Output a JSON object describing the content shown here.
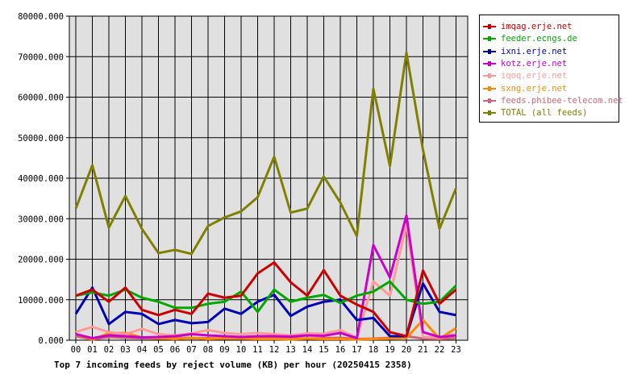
{
  "chart_data": {
    "type": "line",
    "title": "Top 7 incoming feeds by reject volume (KB) per hour (20250415 2358)",
    "categories": [
      "00",
      "01",
      "02",
      "03",
      "04",
      "05",
      "06",
      "07",
      "08",
      "09",
      "10",
      "11",
      "12",
      "13",
      "14",
      "15",
      "16",
      "17",
      "18",
      "19",
      "20",
      "21",
      "22",
      "23"
    ],
    "ylim": [
      0,
      80000
    ],
    "yticks": [
      "0.000",
      "10000.000",
      "20000.000",
      "30000.000",
      "40000.000",
      "50000.000",
      "60000.000",
      "70000.000",
      "80000.000"
    ],
    "grid": true,
    "legend_position": "right",
    "series": [
      {
        "name": "imqag.erje.net",
        "color": "#cc0000",
        "values": [
          11000,
          12500,
          9500,
          13000,
          7500,
          6200,
          7500,
          6500,
          11500,
          10500,
          11000,
          16500,
          19200,
          14300,
          11000,
          17300,
          11000,
          8800,
          7000,
          2000,
          1000,
          17200,
          9000,
          12500
        ]
      },
      {
        "name": "feeder.ecngs.de",
        "color": "#00aa00",
        "values": [
          11000,
          11800,
          11000,
          12500,
          10500,
          9500,
          8000,
          8000,
          9000,
          9500,
          12000,
          7000,
          12500,
          9500,
          10500,
          11200,
          9200,
          11000,
          12000,
          14500,
          10000,
          9000,
          9500,
          13500
        ]
      },
      {
        "name": "ixni.erje.net",
        "color": "#0000bb",
        "values": [
          6500,
          13000,
          4000,
          7000,
          6500,
          4000,
          5000,
          4200,
          4500,
          7800,
          6500,
          9500,
          11200,
          6000,
          8300,
          9500,
          10000,
          5000,
          5500,
          1000,
          1000,
          14000,
          7000,
          6200
        ]
      },
      {
        "name": "kotz.erje.net",
        "color": "#cc00cc",
        "values": [
          1500,
          500,
          1200,
          1000,
          700,
          800,
          1000,
          1500,
          1200,
          1000,
          800,
          1000,
          1000,
          900,
          1200,
          1100,
          1800,
          500,
          23500,
          15500,
          30800,
          2000,
          800,
          1200
        ]
      },
      {
        "name": "iqoq.erje.net",
        "color": "#ff9999",
        "values": [
          2000,
          3300,
          2000,
          1500,
          2800,
          1500,
          1200,
          1700,
          2500,
          1800,
          1500,
          1800,
          1500,
          1200,
          1700,
          1600,
          2500,
          600,
          14500,
          11000,
          28500,
          800,
          700,
          1500
        ]
      },
      {
        "name": "sxng.erje.net",
        "color": "#ff8800",
        "values": [
          1500,
          200,
          1700,
          1800,
          700,
          500,
          300,
          600,
          300,
          500,
          400,
          300,
          300,
          200,
          400,
          300,
          300,
          200,
          300,
          400,
          600,
          5000,
          400,
          3000
        ]
      },
      {
        "name": "feeds.phibee-telecom.net",
        "color": "#cc6677",
        "values": [
          1000,
          200,
          800,
          600,
          500,
          400,
          600,
          500,
          500,
          400,
          500,
          600,
          400,
          500,
          400,
          500,
          600,
          300,
          400,
          600,
          1000,
          400,
          300,
          500
        ]
      },
      {
        "name": "TOTAL (all feeds)",
        "color": "#808000",
        "values": [
          32500,
          43200,
          27800,
          35600,
          27500,
          21500,
          22300,
          21300,
          28200,
          30300,
          31800,
          35300,
          45300,
          31500,
          32500,
          40400,
          34000,
          25700,
          62100,
          43000,
          71000,
          47000,
          27500,
          37500
        ]
      }
    ]
  }
}
